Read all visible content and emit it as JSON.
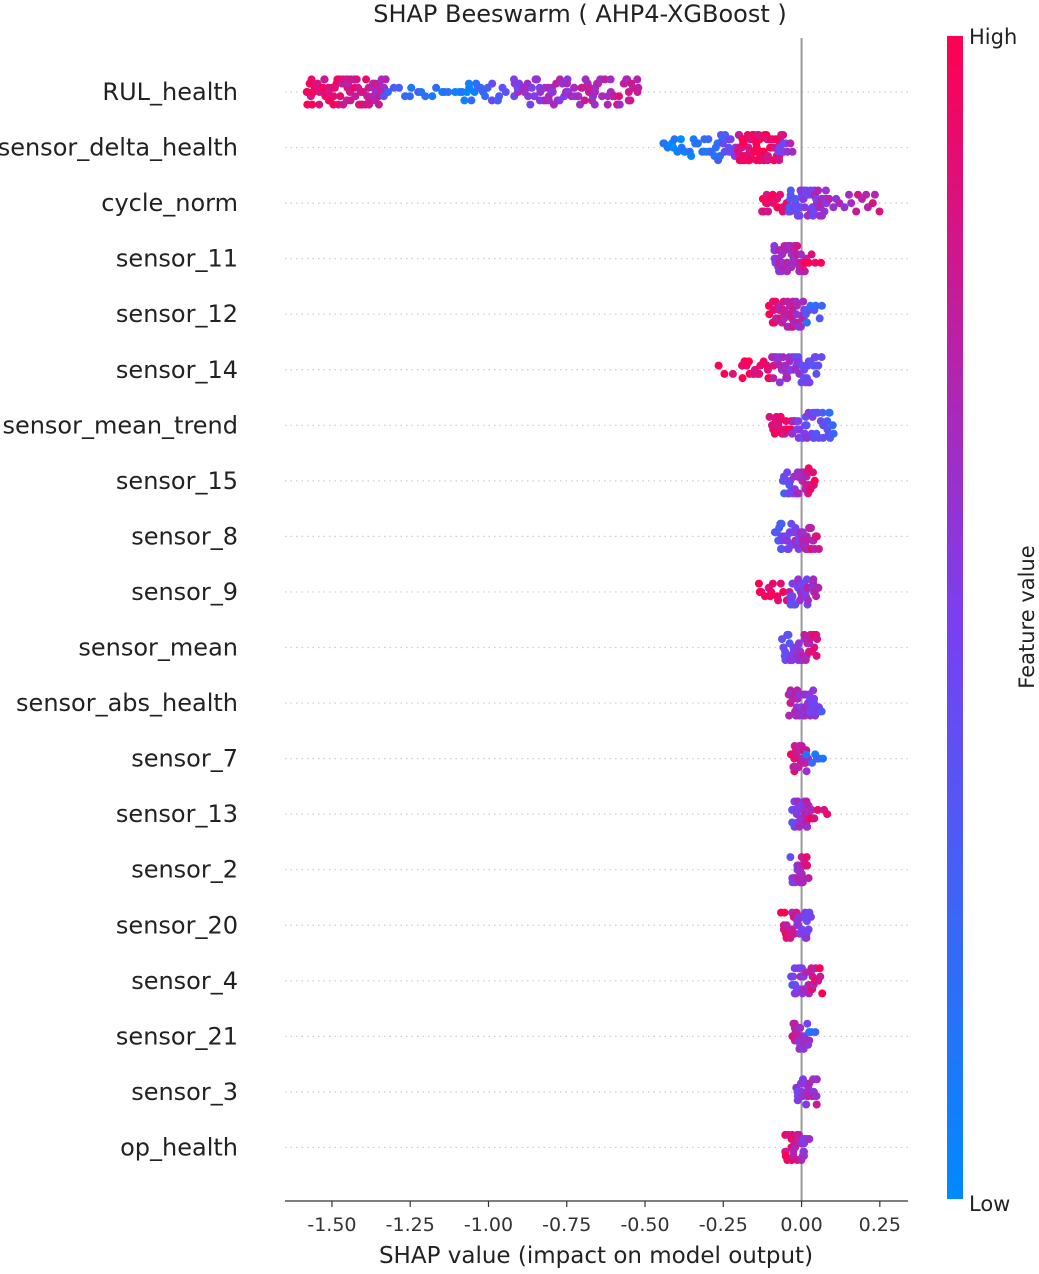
{
  "chart_data": {
    "type": "scatter",
    "subtype": "shap-beeswarm",
    "title": "SHAP Beeswarm ( AHP4-XGBoost )",
    "xlabel": "SHAP value (impact on model output)",
    "xlim": [
      -1.65,
      0.34
    ],
    "xticks": [
      -1.5,
      -1.25,
      -1.0,
      -0.75,
      -0.5,
      -0.25,
      0.0,
      0.25
    ],
    "xtick_labels": [
      "-1.50",
      "-1.25",
      "-1.00",
      "-0.75",
      "-0.50",
      "-0.25",
      "0.00",
      "0.25"
    ],
    "colorbar": {
      "label": "Feature value",
      "high_label": "High",
      "low_label": "Low",
      "high_color": "#ff0052",
      "low_color": "#008afb"
    },
    "features": [
      {
        "name": "RUL_health",
        "clusters": [
          {
            "lo": -1.58,
            "hi": -1.33,
            "v0": 0.95,
            "v1": 0.75,
            "n": 80,
            "spread": 3
          },
          {
            "lo": -1.33,
            "hi": -1.08,
            "v0": 0.3,
            "v1": 0.05,
            "n": 18,
            "spread": 1
          },
          {
            "lo": -1.08,
            "hi": -0.95,
            "v0": 0.05,
            "v1": 0.45,
            "n": 20,
            "spread": 2
          },
          {
            "lo": -0.92,
            "hi": -0.52,
            "v0": 0.55,
            "v1": 0.8,
            "n": 90,
            "spread": 3
          }
        ]
      },
      {
        "name": "sensor_delta_health",
        "clusters": [
          {
            "lo": -0.44,
            "hi": -0.27,
            "v0": 0.05,
            "v1": 0.15,
            "n": 25,
            "spread": 2
          },
          {
            "lo": -0.27,
            "hi": -0.16,
            "v0": 0.2,
            "v1": 0.95,
            "n": 30,
            "spread": 3
          },
          {
            "lo": -0.2,
            "hi": -0.06,
            "v0": 0.95,
            "v1": 0.9,
            "n": 60,
            "spread": 3
          },
          {
            "lo": -0.07,
            "hi": -0.03,
            "v0": 0.55,
            "v1": 0.6,
            "n": 8,
            "spread": 1
          }
        ]
      },
      {
        "name": "cycle_norm",
        "clusters": [
          {
            "lo": -0.13,
            "hi": -0.04,
            "v0": 0.92,
            "v1": 0.88,
            "n": 20,
            "spread": 2
          },
          {
            "lo": -0.04,
            "hi": 0.08,
            "v0": 0.35,
            "v1": 0.7,
            "n": 55,
            "spread": 3
          },
          {
            "lo": 0.08,
            "hi": 0.25,
            "v0": 0.6,
            "v1": 0.8,
            "n": 16,
            "spread": 2
          }
        ]
      },
      {
        "name": "sensor_11",
        "clusters": [
          {
            "lo": -0.09,
            "hi": 0.01,
            "v0": 0.6,
            "v1": 0.75,
            "n": 50,
            "spread": 3
          },
          {
            "lo": 0.01,
            "hi": 0.06,
            "v0": 0.95,
            "v1": 0.95,
            "n": 5,
            "spread": 1
          }
        ]
      },
      {
        "name": "sensor_12",
        "clusters": [
          {
            "lo": -0.1,
            "hi": 0.01,
            "v0": 0.9,
            "v1": 0.6,
            "n": 45,
            "spread": 3
          },
          {
            "lo": 0.01,
            "hi": 0.06,
            "v0": 0.3,
            "v1": 0.25,
            "n": 10,
            "spread": 2
          }
        ]
      },
      {
        "name": "sensor_14",
        "clusters": [
          {
            "lo": -0.27,
            "hi": -0.14,
            "v0": 0.95,
            "v1": 0.92,
            "n": 6,
            "spread": 1
          },
          {
            "lo": -0.19,
            "hi": -0.09,
            "v0": 0.95,
            "v1": 0.9,
            "n": 16,
            "spread": 2
          },
          {
            "lo": -0.09,
            "hi": 0.06,
            "v0": 0.7,
            "v1": 0.35,
            "n": 45,
            "spread": 3
          }
        ]
      },
      {
        "name": "sensor_mean_trend",
        "clusters": [
          {
            "lo": -0.1,
            "hi": -0.03,
            "v0": 0.92,
            "v1": 0.88,
            "n": 20,
            "spread": 2
          },
          {
            "lo": -0.03,
            "hi": 0.1,
            "v0": 0.6,
            "v1": 0.3,
            "n": 40,
            "spread": 3
          }
        ]
      },
      {
        "name": "sensor_15",
        "clusters": [
          {
            "lo": -0.06,
            "hi": 0.04,
            "v0": 0.3,
            "v1": 0.9,
            "n": 35,
            "spread": 3
          }
        ]
      },
      {
        "name": "sensor_8",
        "clusters": [
          {
            "lo": -0.08,
            "hi": 0.05,
            "v0": 0.3,
            "v1": 0.85,
            "n": 55,
            "spread": 3
          }
        ]
      },
      {
        "name": "sensor_9",
        "clusters": [
          {
            "lo": -0.14,
            "hi": -0.04,
            "v0": 0.95,
            "v1": 0.9,
            "n": 14,
            "spread": 2
          },
          {
            "lo": -0.04,
            "hi": 0.05,
            "v0": 0.4,
            "v1": 0.7,
            "n": 35,
            "spread": 3
          }
        ]
      },
      {
        "name": "sensor_mean",
        "clusters": [
          {
            "lo": -0.06,
            "hi": 0.05,
            "v0": 0.35,
            "v1": 0.9,
            "n": 40,
            "spread": 3
          }
        ]
      },
      {
        "name": "sensor_abs_health",
        "clusters": [
          {
            "lo": -0.04,
            "hi": 0.06,
            "v0": 0.75,
            "v1": 0.4,
            "n": 40,
            "spread": 3
          }
        ]
      },
      {
        "name": "sensor_7",
        "clusters": [
          {
            "lo": -0.03,
            "hi": 0.02,
            "v0": 0.85,
            "v1": 0.7,
            "n": 32,
            "spread": 3
          },
          {
            "lo": 0.02,
            "hi": 0.07,
            "v0": 0.2,
            "v1": 0.15,
            "n": 6,
            "spread": 1
          }
        ]
      },
      {
        "name": "sensor_13",
        "clusters": [
          {
            "lo": -0.03,
            "hi": 0.03,
            "v0": 0.4,
            "v1": 0.8,
            "n": 35,
            "spread": 3
          },
          {
            "lo": 0.03,
            "hi": 0.08,
            "v0": 0.95,
            "v1": 0.95,
            "n": 5,
            "spread": 1
          }
        ]
      },
      {
        "name": "sensor_2",
        "clusters": [
          {
            "lo": -0.03,
            "hi": 0.02,
            "v0": 0.5,
            "v1": 0.85,
            "n": 25,
            "spread": 3
          }
        ]
      },
      {
        "name": "sensor_20",
        "clusters": [
          {
            "lo": -0.06,
            "hi": 0.03,
            "v0": 0.95,
            "v1": 0.4,
            "n": 35,
            "spread": 3
          }
        ]
      },
      {
        "name": "sensor_4",
        "clusters": [
          {
            "lo": -0.03,
            "hi": 0.06,
            "v0": 0.4,
            "v1": 0.9,
            "n": 35,
            "spread": 3
          }
        ]
      },
      {
        "name": "sensor_21",
        "clusters": [
          {
            "lo": -0.03,
            "hi": 0.02,
            "v0": 0.75,
            "v1": 0.55,
            "n": 30,
            "spread": 3
          },
          {
            "lo": 0.02,
            "hi": 0.05,
            "v0": 0.2,
            "v1": 0.2,
            "n": 3,
            "spread": 1
          }
        ]
      },
      {
        "name": "sensor_3",
        "clusters": [
          {
            "lo": -0.02,
            "hi": 0.05,
            "v0": 0.5,
            "v1": 0.7,
            "n": 25,
            "spread": 3
          }
        ]
      },
      {
        "name": "op_health",
        "clusters": [
          {
            "lo": -0.05,
            "hi": 0.02,
            "v0": 0.95,
            "v1": 0.5,
            "n": 30,
            "spread": 3
          }
        ]
      }
    ]
  }
}
